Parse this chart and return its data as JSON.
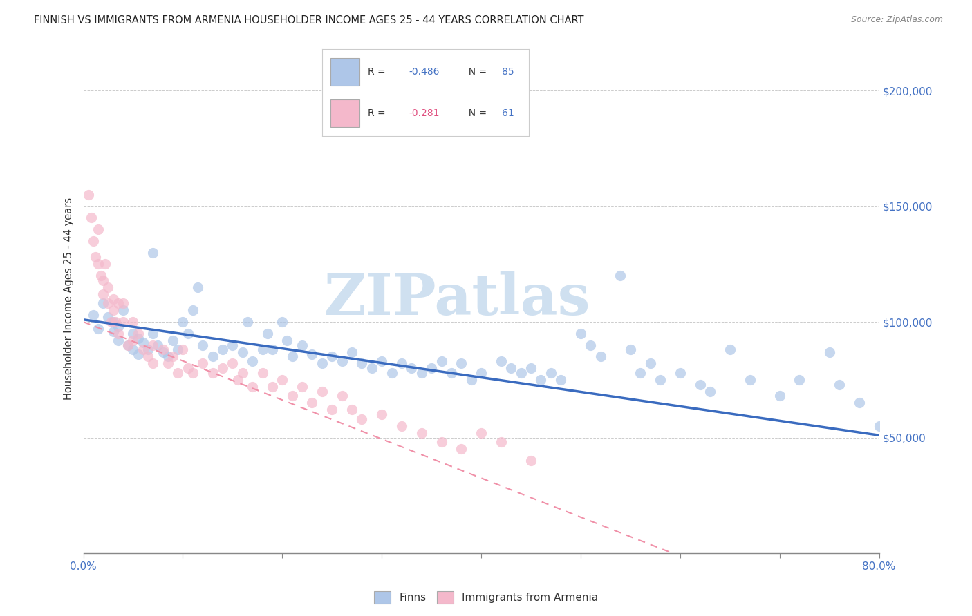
{
  "title": "FINNISH VS IMMIGRANTS FROM ARMENIA HOUSEHOLDER INCOME AGES 25 - 44 YEARS CORRELATION CHART",
  "source": "Source: ZipAtlas.com",
  "ylabel": "Householder Income Ages 25 - 44 years",
  "finns_color": "#aec6e8",
  "armenia_color": "#f4b8cb",
  "finns_line_color": "#3a6bbf",
  "armenia_line_color": "#f090a8",
  "watermark_color": "#cfe0f0",
  "watermark": "ZIPatlas",
  "finns_R": "-0.486",
  "finns_N": "85",
  "armenia_R": "-0.281",
  "armenia_N": "61",
  "xlim": [
    0.0,
    80.0
  ],
  "ylim": [
    0,
    220000
  ],
  "finns_scatter_x": [
    1.0,
    1.5,
    2.0,
    2.5,
    3.0,
    3.0,
    3.5,
    3.5,
    4.0,
    4.5,
    5.0,
    5.0,
    5.5,
    5.5,
    6.0,
    6.5,
    7.0,
    7.0,
    7.5,
    8.0,
    8.5,
    9.0,
    9.5,
    10.0,
    10.5,
    11.0,
    11.5,
    12.0,
    13.0,
    14.0,
    15.0,
    16.0,
    16.5,
    17.0,
    18.0,
    18.5,
    19.0,
    20.0,
    20.5,
    21.0,
    22.0,
    23.0,
    24.0,
    25.0,
    26.0,
    27.0,
    28.0,
    29.0,
    30.0,
    31.0,
    32.0,
    33.0,
    34.0,
    35.0,
    36.0,
    37.0,
    38.0,
    39.0,
    40.0,
    42.0,
    43.0,
    44.0,
    45.0,
    46.0,
    47.0,
    48.0,
    50.0,
    51.0,
    52.0,
    54.0,
    55.0,
    56.0,
    57.0,
    58.0,
    60.0,
    62.0,
    63.0,
    65.0,
    67.0,
    70.0,
    72.0,
    75.0,
    76.0,
    78.0,
    80.0
  ],
  "finns_scatter_y": [
    103000,
    97000,
    108000,
    102000,
    100000,
    96000,
    98000,
    92000,
    105000,
    90000,
    95000,
    88000,
    93000,
    86000,
    91000,
    88000,
    130000,
    95000,
    90000,
    87000,
    85000,
    92000,
    88000,
    100000,
    95000,
    105000,
    115000,
    90000,
    85000,
    88000,
    90000,
    87000,
    100000,
    83000,
    88000,
    95000,
    88000,
    100000,
    92000,
    85000,
    90000,
    86000,
    82000,
    85000,
    83000,
    87000,
    82000,
    80000,
    83000,
    78000,
    82000,
    80000,
    78000,
    80000,
    83000,
    78000,
    82000,
    75000,
    78000,
    83000,
    80000,
    78000,
    80000,
    75000,
    78000,
    75000,
    95000,
    90000,
    85000,
    120000,
    88000,
    78000,
    82000,
    75000,
    78000,
    73000,
    70000,
    88000,
    75000,
    68000,
    75000,
    87000,
    73000,
    65000,
    55000
  ],
  "armenia_scatter_x": [
    0.5,
    0.8,
    1.0,
    1.2,
    1.5,
    1.5,
    1.8,
    2.0,
    2.0,
    2.2,
    2.5,
    2.5,
    2.8,
    3.0,
    3.0,
    3.2,
    3.5,
    3.5,
    4.0,
    4.0,
    4.5,
    5.0,
    5.0,
    5.5,
    6.0,
    6.5,
    7.0,
    7.0,
    8.0,
    8.5,
    9.0,
    9.5,
    10.0,
    10.5,
    11.0,
    12.0,
    13.0,
    14.0,
    15.0,
    15.5,
    16.0,
    17.0,
    18.0,
    19.0,
    20.0,
    21.0,
    22.0,
    23.0,
    24.0,
    25.0,
    26.0,
    27.0,
    28.0,
    30.0,
    32.0,
    34.0,
    36.0,
    38.0,
    40.0,
    42.0,
    45.0
  ],
  "armenia_scatter_y": [
    155000,
    145000,
    135000,
    128000,
    140000,
    125000,
    120000,
    118000,
    112000,
    125000,
    115000,
    108000,
    100000,
    110000,
    105000,
    100000,
    108000,
    95000,
    108000,
    100000,
    90000,
    100000,
    92000,
    95000,
    88000,
    85000,
    90000,
    82000,
    88000,
    82000,
    85000,
    78000,
    88000,
    80000,
    78000,
    82000,
    78000,
    80000,
    82000,
    75000,
    78000,
    72000,
    78000,
    72000,
    75000,
    68000,
    72000,
    65000,
    70000,
    62000,
    68000,
    62000,
    58000,
    60000,
    55000,
    52000,
    48000,
    45000,
    52000,
    48000,
    40000
  ]
}
